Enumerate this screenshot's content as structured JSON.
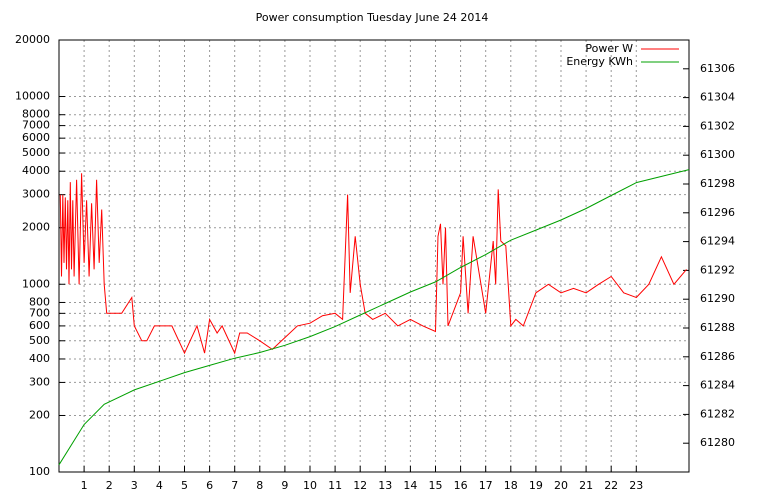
{
  "chart_data": {
    "type": "line",
    "title": "Power consumption Tuesday June 24 2014",
    "xlim": [
      0,
      25.1
    ],
    "xticks": [
      1,
      2,
      3,
      4,
      5,
      6,
      7,
      8,
      9,
      10,
      11,
      12,
      13,
      14,
      15,
      16,
      17,
      18,
      19,
      20,
      21,
      22,
      23
    ],
    "yscale": "log",
    "ylim": [
      100,
      20000
    ],
    "yticks": [
      100,
      200,
      300,
      400,
      500,
      600,
      700,
      800,
      1000,
      2000,
      3000,
      4000,
      5000,
      6000,
      7000,
      8000,
      10000,
      20000
    ],
    "y2lim": [
      61278,
      61308
    ],
    "y2ticks": [
      61280,
      61282,
      61284,
      61286,
      61288,
      61290,
      61292,
      61294,
      61296,
      61298,
      61300,
      61302,
      61304,
      61306
    ],
    "grid": true,
    "legend": "top-right",
    "series": [
      {
        "name": "Power W",
        "color": "#ff0000",
        "x": [
          0.05,
          0.1,
          0.15,
          0.2,
          0.25,
          0.3,
          0.35,
          0.4,
          0.45,
          0.5,
          0.55,
          0.6,
          0.7,
          0.8,
          0.9,
          1.0,
          1.1,
          1.2,
          1.3,
          1.4,
          1.5,
          1.6,
          1.7,
          1.8,
          1.9,
          2.0,
          2.5,
          2.9,
          3.0,
          3.3,
          3.5,
          3.8,
          4.0,
          4.5,
          5.0,
          5.5,
          5.8,
          6.0,
          6.3,
          6.5,
          7.0,
          7.2,
          7.5,
          8.0,
          8.5,
          9.0,
          9.5,
          10.0,
          10.5,
          11.0,
          11.3,
          11.5,
          11.6,
          11.8,
          12.0,
          12.2,
          12.5,
          13.0,
          13.5,
          14.0,
          14.5,
          15.0,
          15.1,
          15.2,
          15.3,
          15.4,
          15.5,
          16.0,
          16.1,
          16.3,
          16.5,
          17.0,
          17.3,
          17.4,
          17.5,
          17.6,
          17.8,
          18.0,
          18.2,
          18.5,
          19.0,
          19.5,
          20.0,
          20.5,
          21.0,
          21.5,
          22.0,
          22.5,
          23.0,
          23.5,
          24.0,
          24.5,
          25.0
        ],
        "values": [
          3000,
          1100,
          3000,
          1300,
          2900,
          1200,
          2800,
          1000,
          3500,
          1200,
          2800,
          1100,
          3600,
          1000,
          3900,
          1300,
          2800,
          1100,
          2700,
          1200,
          3600,
          1300,
          2500,
          1000,
          700,
          700,
          700,
          850,
          600,
          500,
          500,
          600,
          600,
          600,
          430,
          600,
          430,
          650,
          550,
          600,
          430,
          550,
          550,
          500,
          450,
          520,
          600,
          620,
          680,
          700,
          650,
          3000,
          900,
          1800,
          1000,
          700,
          650,
          700,
          600,
          650,
          600,
          560,
          1800,
          2100,
          1000,
          2000,
          600,
          900,
          1800,
          700,
          1800,
          700,
          1700,
          1000,
          3200,
          1700,
          1600,
          600,
          650,
          600,
          900,
          1000,
          900,
          950,
          900,
          1000,
          1100,
          900,
          850,
          1000,
          1400,
          1000,
          1200
        ]
      },
      {
        "name": "Energy KWh",
        "color": "#00a000",
        "axis": "y2",
        "x": [
          0,
          1,
          1.8,
          3,
          4,
          5,
          6,
          7,
          8,
          9,
          10,
          11,
          12,
          13,
          14,
          15,
          16,
          17,
          18,
          19,
          20,
          21,
          22,
          23,
          25.1
        ],
        "values": [
          61278.5,
          61281.3,
          61282.7,
          61283.7,
          61284.3,
          61284.9,
          61285.4,
          61285.9,
          61286.3,
          61286.8,
          61287.4,
          61288.1,
          61288.9,
          61289.7,
          61290.5,
          61291.2,
          61292.2,
          61293.1,
          61294.1,
          61294.8,
          61295.5,
          61296.3,
          61297.2,
          61298.1,
          61299.0
        ]
      }
    ]
  }
}
